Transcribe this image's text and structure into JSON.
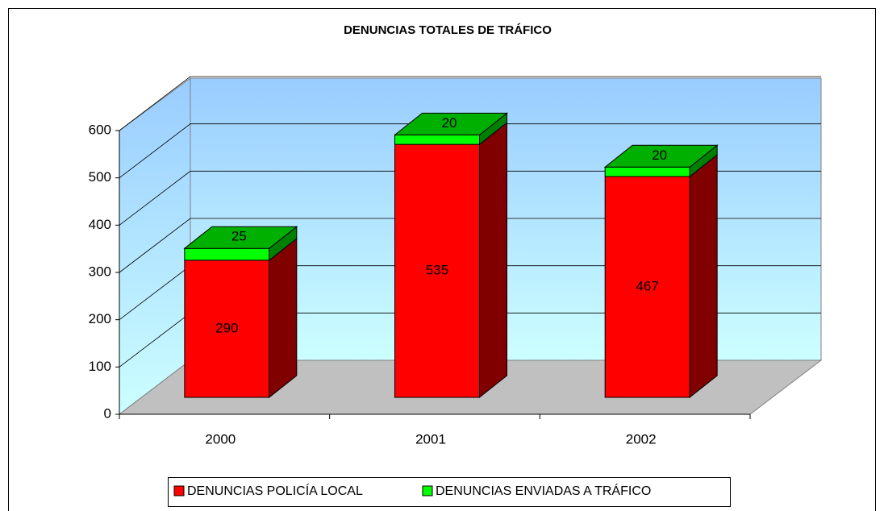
{
  "chart_data": {
    "type": "bar",
    "stacked": true,
    "three_d": true,
    "title": "DENUNCIAS TOTALES DE TRÁFICO",
    "categories": [
      "2000",
      "2001",
      "2002"
    ],
    "series": [
      {
        "name": "DENUNCIAS POLICÍA LOCAL",
        "color": "#ff0000",
        "values": [
          290,
          535,
          467
        ]
      },
      {
        "name": "DENUNCIAS ENVIADAS A TRÁFICO",
        "color": "#00ff00",
        "values": [
          25,
          20,
          20
        ]
      }
    ],
    "ylim": [
      0,
      600
    ],
    "yticks": [
      0,
      100,
      200,
      300,
      400,
      500,
      600
    ],
    "grid": true,
    "legend": "bottom"
  }
}
